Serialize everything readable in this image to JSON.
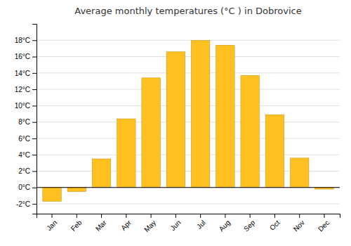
{
  "chart_data": {
    "type": "bar",
    "title": "Average monthly temperatures (°C ) in Dobrovice",
    "categories": [
      "Jan",
      "Feb",
      "Mar",
      "Apr",
      "May",
      "Jun",
      "Jul",
      "Aug",
      "Sep",
      "Oct",
      "Nov",
      "Dec"
    ],
    "values": [
      -1.7,
      -0.5,
      3.5,
      8.4,
      13.4,
      16.6,
      18.0,
      17.4,
      13.7,
      8.9,
      3.6,
      -0.2
    ],
    "color": "#FFC020",
    "ylim": [
      -3.2,
      20.0
    ],
    "yticks": [
      {
        "value": -2,
        "label": "-2°C"
      },
      {
        "value": 0,
        "label": "0°C"
      },
      {
        "value": 2,
        "label": "2°C"
      },
      {
        "value": 4,
        "label": "4°C"
      },
      {
        "value": 6,
        "label": "6°C"
      },
      {
        "value": 8,
        "label": "8°C"
      },
      {
        "value": 10,
        "label": "10°C"
      },
      {
        "value": 12,
        "label": "12°C"
      },
      {
        "value": 14,
        "label": "14°C"
      },
      {
        "value": 16,
        "label": "16°C"
      },
      {
        "value": 18,
        "label": "18°C"
      }
    ],
    "grid": true
  }
}
